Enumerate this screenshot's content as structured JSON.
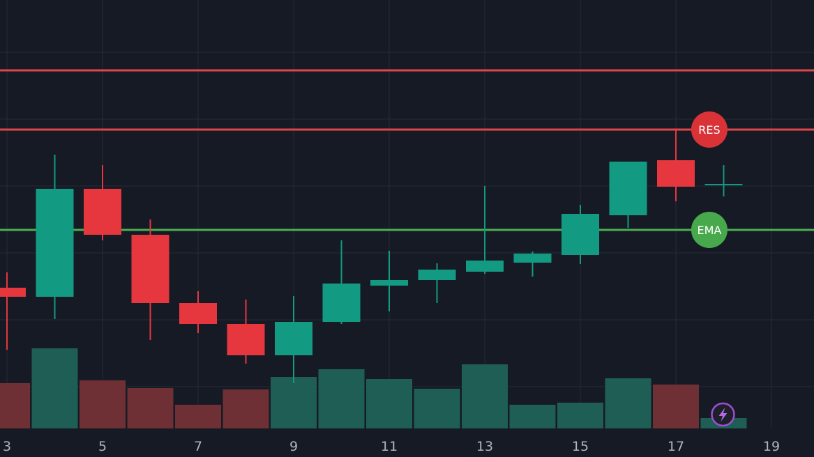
{
  "chart_data": {
    "type": "candlestick",
    "x_ticks": [
      3,
      5,
      7,
      9,
      11,
      13,
      15,
      17,
      19
    ],
    "xlim": [
      2.85,
      19.85
    ],
    "ylim": [
      0,
      615
    ],
    "grid": true,
    "candles": [
      {
        "x": 3,
        "open": 202,
        "high": 224,
        "low": 113,
        "close": 189
      },
      {
        "x": 4,
        "open": 189,
        "high": 393,
        "low": 157,
        "close": 344
      },
      {
        "x": 5,
        "open": 344,
        "high": 378,
        "low": 270,
        "close": 278
      },
      {
        "x": 6,
        "open": 278,
        "high": 300,
        "low": 127,
        "close": 180
      },
      {
        "x": 7,
        "open": 180,
        "high": 197,
        "low": 137,
        "close": 150
      },
      {
        "x": 8,
        "open": 150,
        "high": 185,
        "low": 93,
        "close": 105
      },
      {
        "x": 9,
        "open": 105,
        "high": 190,
        "low": 65,
        "close": 153
      },
      {
        "x": 10,
        "open": 153,
        "high": 270,
        "low": 150,
        "close": 208
      },
      {
        "x": 11,
        "open": 205,
        "high": 255,
        "low": 168,
        "close": 213
      },
      {
        "x": 12,
        "open": 213,
        "high": 237,
        "low": 180,
        "close": 228
      },
      {
        "x": 13,
        "open": 225,
        "high": 348,
        "low": 222,
        "close": 241
      },
      {
        "x": 14,
        "open": 238,
        "high": 254,
        "low": 218,
        "close": 251
      },
      {
        "x": 15,
        "open": 249,
        "high": 321,
        "low": 236,
        "close": 308
      },
      {
        "x": 16,
        "open": 306,
        "high": 381,
        "low": 288,
        "close": 383
      },
      {
        "x": 17,
        "open": 385,
        "high": 428,
        "low": 326,
        "close": 347
      },
      {
        "x": 18,
        "open": 350,
        "high": 378,
        "low": 333,
        "close": 350
      }
    ],
    "volume": [
      {
        "x": 3,
        "value": 65,
        "direction": "down"
      },
      {
        "x": 4,
        "value": 115,
        "direction": "up"
      },
      {
        "x": 5,
        "value": 69,
        "direction": "down"
      },
      {
        "x": 6,
        "value": 58,
        "direction": "down"
      },
      {
        "x": 7,
        "value": 34,
        "direction": "down"
      },
      {
        "x": 8,
        "value": 56,
        "direction": "down"
      },
      {
        "x": 9,
        "value": 74,
        "direction": "up"
      },
      {
        "x": 10,
        "value": 85,
        "direction": "up"
      },
      {
        "x": 11,
        "value": 71,
        "direction": "up"
      },
      {
        "x": 12,
        "value": 57,
        "direction": "up"
      },
      {
        "x": 13,
        "value": 92,
        "direction": "up"
      },
      {
        "x": 14,
        "value": 34,
        "direction": "up"
      },
      {
        "x": 15,
        "value": 37,
        "direction": "up"
      },
      {
        "x": 16,
        "value": 72,
        "direction": "up"
      },
      {
        "x": 17,
        "value": 63,
        "direction": "down"
      },
      {
        "x": 18,
        "value": 15,
        "direction": "up"
      }
    ],
    "lines": [
      {
        "name": "resistance-upper",
        "y": 514,
        "color": "#e0454b"
      },
      {
        "name": "RES",
        "y": 429,
        "color": "#e0454b",
        "badge": "RES",
        "badge_x": 17.7
      },
      {
        "name": "EMA",
        "y": 285,
        "color": "#4caf50",
        "badge": "EMA",
        "badge_x": 17.7
      }
    ],
    "colors": {
      "background": "#161a25",
      "grid": "#262b38",
      "up": "#139a82",
      "down": "#e6373f",
      "volume_up": "#1f5e55",
      "volume_down": "#6e3034",
      "badge_res": "#d93338",
      "badge_ema": "#47a94c",
      "tick_text": "#b2b5be"
    },
    "icons": {
      "volume_marker": "lightning-icon"
    }
  }
}
